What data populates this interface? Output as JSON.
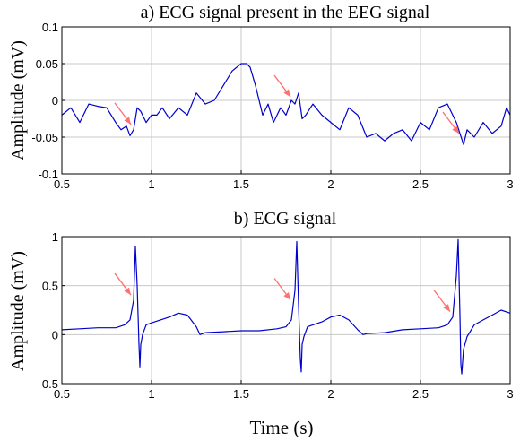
{
  "chart_data": [
    {
      "type": "line",
      "title": "a)  ECG signal present in the EEG signal",
      "xlabel": "",
      "ylabel": "Amplitude (mV)",
      "xlim": [
        0.5,
        3
      ],
      "ylim": [
        -0.1,
        0.1
      ],
      "xticks": [
        "0.5",
        "1",
        "1.5",
        "2",
        "2.5",
        "3"
      ],
      "yticks": [
        "0.1",
        "0.05",
        "0",
        "-0.05",
        "-0.1"
      ],
      "grid": true,
      "line_color": "#0000cc",
      "arrow_color": "#ff7070",
      "series": [
        {
          "x": [
            0.5,
            0.55,
            0.6,
            0.62,
            0.65,
            0.7,
            0.75,
            0.8,
            0.83,
            0.86,
            0.88,
            0.9,
            0.92,
            0.94,
            0.97,
            1.0,
            1.03,
            1.06,
            1.1,
            1.15,
            1.2,
            1.25,
            1.3,
            1.35,
            1.4,
            1.45,
            1.5,
            1.53,
            1.55,
            1.58,
            1.62,
            1.65,
            1.68,
            1.72,
            1.75,
            1.78,
            1.8,
            1.82,
            1.84,
            1.86,
            1.9,
            1.95,
            2.0,
            2.05,
            2.1,
            2.15,
            2.2,
            2.25,
            2.3,
            2.35,
            2.4,
            2.45,
            2.5,
            2.55,
            2.6,
            2.65,
            2.7,
            2.72,
            2.74,
            2.76,
            2.8,
            2.85,
            2.9,
            2.95,
            2.98,
            3.0
          ],
          "y": [
            -0.02,
            -0.01,
            -0.03,
            -0.02,
            -0.005,
            -0.008,
            -0.01,
            -0.03,
            -0.04,
            -0.035,
            -0.048,
            -0.04,
            -0.01,
            -0.015,
            -0.03,
            -0.02,
            -0.02,
            -0.01,
            -0.025,
            -0.01,
            -0.02,
            0.01,
            -0.005,
            0.0,
            0.02,
            0.04,
            0.05,
            0.05,
            0.045,
            0.02,
            -0.02,
            -0.005,
            -0.03,
            -0.01,
            -0.02,
            0.0,
            -0.005,
            0.01,
            -0.025,
            -0.02,
            -0.005,
            -0.02,
            -0.03,
            -0.04,
            -0.01,
            -0.02,
            -0.05,
            -0.045,
            -0.055,
            -0.045,
            -0.04,
            -0.055,
            -0.03,
            -0.04,
            -0.01,
            -0.005,
            -0.03,
            -0.045,
            -0.06,
            -0.04,
            -0.05,
            -0.03,
            -0.045,
            -0.035,
            -0.01,
            -0.02
          ]
        }
      ],
      "arrows_at_x": [
        0.9,
        1.79,
        2.73
      ]
    },
    {
      "type": "line",
      "title": "b) ECG signal",
      "xlabel": "Time (s)",
      "ylabel": "Amplitude (mV)",
      "xlim": [
        0.5,
        3
      ],
      "ylim": [
        -0.5,
        1
      ],
      "xticks": [
        "0.5",
        "1",
        "1.5",
        "2",
        "2.5",
        "3"
      ],
      "yticks": [
        "1",
        "0.5",
        "0",
        "-0.5"
      ],
      "grid": true,
      "line_color": "#0000cc",
      "arrow_color": "#ff7070",
      "series": [
        {
          "x": [
            0.5,
            0.6,
            0.7,
            0.8,
            0.85,
            0.88,
            0.9,
            0.91,
            0.92,
            0.93,
            0.935,
            0.94,
            0.95,
            0.97,
            1.0,
            1.05,
            1.1,
            1.15,
            1.2,
            1.25,
            1.27,
            1.3,
            1.4,
            1.5,
            1.6,
            1.7,
            1.75,
            1.78,
            1.8,
            1.81,
            1.82,
            1.83,
            1.835,
            1.84,
            1.85,
            1.87,
            1.9,
            1.95,
            2.0,
            2.05,
            2.1,
            2.15,
            2.18,
            2.2,
            2.3,
            2.4,
            2.5,
            2.6,
            2.65,
            2.68,
            2.7,
            2.71,
            2.72,
            2.725,
            2.73,
            2.74,
            2.76,
            2.8,
            2.85,
            2.9,
            2.95,
            3.0
          ],
          "y": [
            0.05,
            0.06,
            0.07,
            0.07,
            0.1,
            0.15,
            0.35,
            0.9,
            0.5,
            -0.1,
            -0.33,
            -0.1,
            0.0,
            0.1,
            0.12,
            0.15,
            0.18,
            0.22,
            0.2,
            0.08,
            0.0,
            0.02,
            0.03,
            0.04,
            0.04,
            0.06,
            0.08,
            0.15,
            0.45,
            0.95,
            0.3,
            -0.25,
            -0.38,
            -0.1,
            -0.02,
            0.08,
            0.1,
            0.13,
            0.18,
            0.2,
            0.15,
            0.05,
            0.0,
            0.01,
            0.02,
            0.05,
            0.06,
            0.07,
            0.1,
            0.18,
            0.6,
            0.97,
            0.2,
            -0.3,
            -0.4,
            -0.15,
            -0.02,
            0.1,
            0.15,
            0.2,
            0.25,
            0.22
          ]
        }
      ],
      "arrows_at_x": [
        0.9,
        1.79,
        2.68
      ]
    }
  ]
}
